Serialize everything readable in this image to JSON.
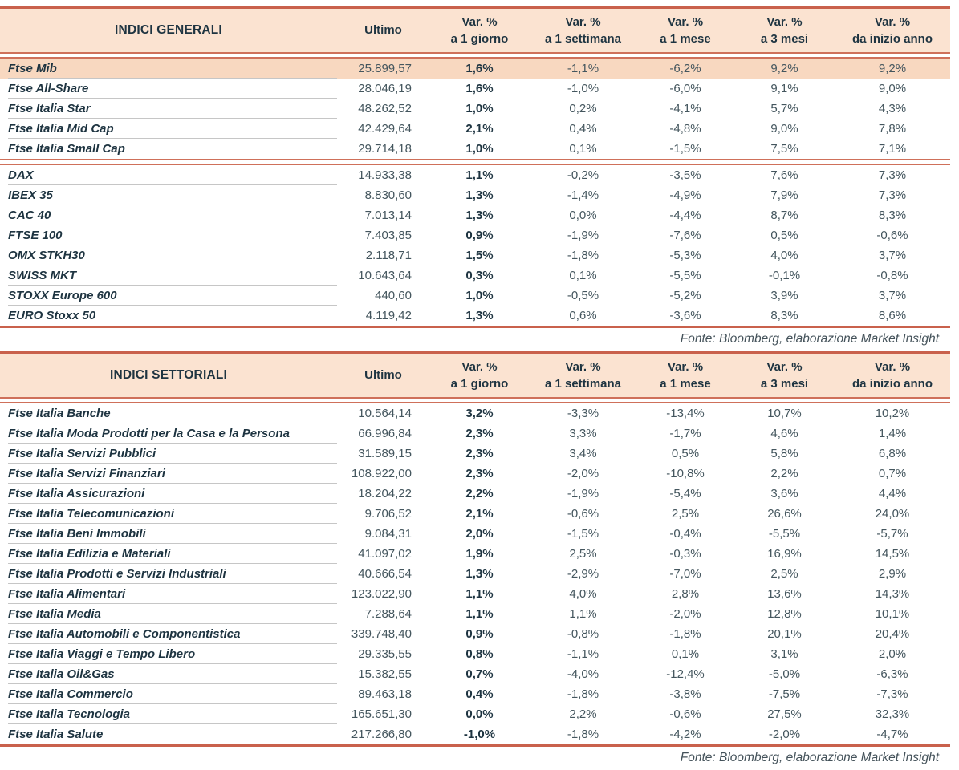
{
  "colors": {
    "header_bg": "#fbe3d1",
    "highlight_row_bg": "#f8d8c0",
    "rule_salmon": "#c9614c",
    "row_rule_gray": "#c6c6c6",
    "text_dark": "#1e3441",
    "text_mid": "#44565e"
  },
  "columns": {
    "ultimo": "Ultimo",
    "var_headers": [
      {
        "l1": "Var. %",
        "l2": "a 1 giorno"
      },
      {
        "l1": "Var. %",
        "l2": "a 1 settimana"
      },
      {
        "l1": "Var. %",
        "l2": "a 1 mese"
      },
      {
        "l1": "Var. %",
        "l2": "a 3 mesi"
      },
      {
        "l1": "Var. %",
        "l2": "da inizio anno"
      }
    ]
  },
  "footer_note": "Fonte: Bloomberg, elaborazione Market Insight",
  "tables": [
    {
      "title": "INDICI GENERALI",
      "groups": [
        {
          "rows": [
            {
              "name": "Ftse Mib",
              "ultimo": "25.899,57",
              "d1": "1,6%",
              "w1": "-1,1%",
              "m1": "-6,2%",
              "m3": "9,2%",
              "ytd": "9,2%",
              "highlight": true
            },
            {
              "name": "Ftse All-Share",
              "ultimo": "28.046,19",
              "d1": "1,6%",
              "w1": "-1,0%",
              "m1": "-6,0%",
              "m3": "9,1%",
              "ytd": "9,0%"
            },
            {
              "name": "Ftse Italia Star",
              "ultimo": "48.262,52",
              "d1": "1,0%",
              "w1": "0,2%",
              "m1": "-4,1%",
              "m3": "5,7%",
              "ytd": "4,3%"
            },
            {
              "name": "Ftse Italia Mid Cap",
              "ultimo": "42.429,64",
              "d1": "2,1%",
              "w1": "0,4%",
              "m1": "-4,8%",
              "m3": "9,0%",
              "ytd": "7,8%"
            },
            {
              "name": "Ftse Italia Small Cap",
              "ultimo": "29.714,18",
              "d1": "1,0%",
              "w1": "0,1%",
              "m1": "-1,5%",
              "m3": "7,5%",
              "ytd": "7,1%"
            }
          ]
        },
        {
          "rows": [
            {
              "name": "DAX",
              "ultimo": "14.933,38",
              "d1": "1,1%",
              "w1": "-0,2%",
              "m1": "-3,5%",
              "m3": "7,6%",
              "ytd": "7,3%"
            },
            {
              "name": "IBEX 35",
              "ultimo": "8.830,60",
              "d1": "1,3%",
              "w1": "-1,4%",
              "m1": "-4,9%",
              "m3": "7,9%",
              "ytd": "7,3%"
            },
            {
              "name": "CAC 40",
              "ultimo": "7.013,14",
              "d1": "1,3%",
              "w1": "0,0%",
              "m1": "-4,4%",
              "m3": "8,7%",
              "ytd": "8,3%"
            },
            {
              "name": "FTSE 100",
              "ultimo": "7.403,85",
              "d1": "0,9%",
              "w1": "-1,9%",
              "m1": "-7,6%",
              "m3": "0,5%",
              "ytd": "-0,6%"
            },
            {
              "name": "OMX STKH30",
              "ultimo": "2.118,71",
              "d1": "1,5%",
              "w1": "-1,8%",
              "m1": "-5,3%",
              "m3": "4,0%",
              "ytd": "3,7%"
            },
            {
              "name": "SWISS MKT",
              "ultimo": "10.643,64",
              "d1": "0,3%",
              "w1": "0,1%",
              "m1": "-5,5%",
              "m3": "-0,1%",
              "ytd": "-0,8%"
            },
            {
              "name": "STOXX Europe 600",
              "ultimo": "440,60",
              "d1": "1,0%",
              "w1": "-0,5%",
              "m1": "-5,2%",
              "m3": "3,9%",
              "ytd": "3,7%"
            },
            {
              "name": "EURO Stoxx 50",
              "ultimo": "4.119,42",
              "d1": "1,3%",
              "w1": "0,6%",
              "m1": "-3,6%",
              "m3": "8,3%",
              "ytd": "8,6%"
            }
          ]
        }
      ]
    },
    {
      "title": "INDICI SETTORIALI",
      "groups": [
        {
          "rows": [
            {
              "name": "Ftse Italia Banche",
              "ultimo": "10.564,14",
              "d1": "3,2%",
              "w1": "-3,3%",
              "m1": "-13,4%",
              "m3": "10,7%",
              "ytd": "10,2%"
            },
            {
              "name": "Ftse Italia Moda Prodotti per la Casa e la Persona",
              "ultimo": "66.996,84",
              "d1": "2,3%",
              "w1": "3,3%",
              "m1": "-1,7%",
              "m3": "4,6%",
              "ytd": "1,4%"
            },
            {
              "name": "Ftse Italia Servizi Pubblici",
              "ultimo": "31.589,15",
              "d1": "2,3%",
              "w1": "3,4%",
              "m1": "0,5%",
              "m3": "5,8%",
              "ytd": "6,8%"
            },
            {
              "name": "Ftse Italia Servizi Finanziari",
              "ultimo": "108.922,00",
              "d1": "2,3%",
              "w1": "-2,0%",
              "m1": "-10,8%",
              "m3": "2,2%",
              "ytd": "0,7%"
            },
            {
              "name": "Ftse Italia Assicurazioni",
              "ultimo": "18.204,22",
              "d1": "2,2%",
              "w1": "-1,9%",
              "m1": "-5,4%",
              "m3": "3,6%",
              "ytd": "4,4%"
            },
            {
              "name": "Ftse Italia Telecomunicazioni",
              "ultimo": "9.706,52",
              "d1": "2,1%",
              "w1": "-0,6%",
              "m1": "2,5%",
              "m3": "26,6%",
              "ytd": "24,0%"
            },
            {
              "name": "Ftse Italia Beni Immobili",
              "ultimo": "9.084,31",
              "d1": "2,0%",
              "w1": "-1,5%",
              "m1": "-0,4%",
              "m3": "-5,5%",
              "ytd": "-5,7%"
            },
            {
              "name": "Ftse Italia Edilizia e Materiali",
              "ultimo": "41.097,02",
              "d1": "1,9%",
              "w1": "2,5%",
              "m1": "-0,3%",
              "m3": "16,9%",
              "ytd": "14,5%"
            },
            {
              "name": "Ftse Italia Prodotti e Servizi Industriali",
              "ultimo": "40.666,54",
              "d1": "1,3%",
              "w1": "-2,9%",
              "m1": "-7,0%",
              "m3": "2,5%",
              "ytd": "2,9%"
            },
            {
              "name": "Ftse Italia Alimentari",
              "ultimo": "123.022,90",
              "d1": "1,1%",
              "w1": "4,0%",
              "m1": "2,8%",
              "m3": "13,6%",
              "ytd": "14,3%"
            },
            {
              "name": "Ftse Italia Media",
              "ultimo": "7.288,64",
              "d1": "1,1%",
              "w1": "1,1%",
              "m1": "-2,0%",
              "m3": "12,8%",
              "ytd": "10,1%"
            },
            {
              "name": "Ftse Italia Automobili e Componentistica",
              "ultimo": "339.748,40",
              "d1": "0,9%",
              "w1": "-0,8%",
              "m1": "-1,8%",
              "m3": "20,1%",
              "ytd": "20,4%"
            },
            {
              "name": "Ftse Italia Viaggi e Tempo Libero",
              "ultimo": "29.335,55",
              "d1": "0,8%",
              "w1": "-1,1%",
              "m1": "0,1%",
              "m3": "3,1%",
              "ytd": "2,0%"
            },
            {
              "name": "Ftse Italia Oil&Gas",
              "ultimo": "15.382,55",
              "d1": "0,7%",
              "w1": "-4,0%",
              "m1": "-12,4%",
              "m3": "-5,0%",
              "ytd": "-6,3%"
            },
            {
              "name": "Ftse Italia Commercio",
              "ultimo": "89.463,18",
              "d1": "0,4%",
              "w1": "-1,8%",
              "m1": "-3,8%",
              "m3": "-7,5%",
              "ytd": "-7,3%"
            },
            {
              "name": "Ftse Italia Tecnologia",
              "ultimo": "165.651,30",
              "d1": "0,0%",
              "w1": "2,2%",
              "m1": "-0,6%",
              "m3": "27,5%",
              "ytd": "32,3%"
            },
            {
              "name": "Ftse Italia Salute",
              "ultimo": "217.266,80",
              "d1": "-1,0%",
              "w1": "-1,8%",
              "m1": "-4,2%",
              "m3": "-2,0%",
              "ytd": "-4,7%"
            }
          ]
        }
      ]
    }
  ]
}
